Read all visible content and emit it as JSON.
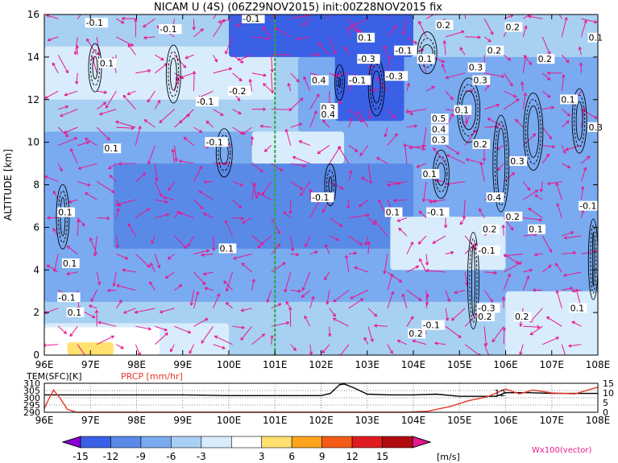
{
  "chart_data": [
    {
      "type": "heatmap",
      "title": "NICAM U (4S) (06Z29NOV2015) init:00Z28NOV2015 fix",
      "xlabel": "",
      "ylabel": "ALTITUDE [km]",
      "x_ticks": [
        "96E",
        "97E",
        "98E",
        "99E",
        "100E",
        "101E",
        "102E",
        "103E",
        "104E",
        "105E",
        "106E",
        "107E",
        "108E"
      ],
      "y_ticks": [
        "0",
        "2",
        "4",
        "6",
        "8",
        "10",
        "12",
        "14",
        "16"
      ],
      "xlim": [
        96,
        108
      ],
      "ylim": [
        0,
        16
      ],
      "marker_line_lon": 101,
      "regions": [
        {
          "lon": [
            96,
            108
          ],
          "alt": [
            0,
            16
          ],
          "u": -4
        },
        {
          "lon": [
            96,
            108
          ],
          "alt": [
            2.5,
            10.5
          ],
          "u": -7
        },
        {
          "lon": [
            97.5,
            104
          ],
          "alt": [
            5,
            9
          ],
          "u": -10
        },
        {
          "lon": [
            96,
            101.5
          ],
          "alt": [
            10.5,
            15
          ],
          "u": -5
        },
        {
          "lon": [
            96,
            101
          ],
          "alt": [
            12,
            14.5
          ],
          "u": -2
        },
        {
          "lon": [
            101.5,
            108
          ],
          "alt": [
            10.5,
            14
          ],
          "u": -9
        },
        {
          "lon": [
            100,
            104
          ],
          "alt": [
            14,
            16
          ],
          "u": -13
        },
        {
          "lon": [
            102.3,
            103.8
          ],
          "alt": [
            11,
            15
          ],
          "u": -15
        },
        {
          "lon": [
            96,
            100
          ],
          "alt": [
            0,
            1.5
          ],
          "u": -3
        },
        {
          "lon": [
            96,
            98.5
          ],
          "alt": [
            0,
            1.3
          ],
          "u": 4
        },
        {
          "lon": [
            96.5,
            97.5
          ],
          "alt": [
            0,
            0.6
          ],
          "u": 7
        },
        {
          "lon": [
            100.5,
            102.5
          ],
          "alt": [
            9,
            10.5
          ],
          "u": -3
        },
        {
          "lon": [
            103.5,
            106
          ],
          "alt": [
            4,
            6.5
          ],
          "u": -3
        },
        {
          "lon": [
            106,
            108
          ],
          "alt": [
            0,
            3
          ],
          "u": -2
        }
      ],
      "contour_labels": [
        {
          "text": "-0.1",
          "lon": 96.9,
          "alt": 15.5
        },
        {
          "text": "-0.1",
          "lon": 98.5,
          "alt": 15.2
        },
        {
          "text": "-0.1",
          "lon": 100.3,
          "alt": 15.7
        },
        {
          "text": "0.1",
          "lon": 97.2,
          "alt": 13.6
        },
        {
          "text": "-0.1",
          "lon": 99.3,
          "alt": 11.8
        },
        {
          "text": "-0.2",
          "lon": 100.0,
          "alt": 12.3
        },
        {
          "text": "-0.1",
          "lon": 99.5,
          "alt": 9.9
        },
        {
          "text": "0.1",
          "lon": 97.3,
          "alt": 9.6
        },
        {
          "text": "-0.1",
          "lon": 101.8,
          "alt": 7.3
        },
        {
          "text": "0.1",
          "lon": 103.4,
          "alt": 6.6
        },
        {
          "text": "-0.1",
          "lon": 104.3,
          "alt": 6.6
        },
        {
          "text": "0.1",
          "lon": 96.3,
          "alt": 6.6
        },
        {
          "text": "0.1",
          "lon": 99.8,
          "alt": 4.9
        },
        {
          "text": "0.1",
          "lon": 96.4,
          "alt": 4.2
        },
        {
          "text": "-0.1",
          "lon": 96.3,
          "alt": 2.6
        },
        {
          "text": "0.1",
          "lon": 96.5,
          "alt": 1.9
        },
        {
          "text": "-0.1",
          "lon": 102.6,
          "alt": 12.8
        },
        {
          "text": "-0.3",
          "lon": 103.4,
          "alt": 13.0
        },
        {
          "text": "-0.1",
          "lon": 103.6,
          "alt": 14.2
        },
        {
          "text": "0.1",
          "lon": 102.8,
          "alt": 14.8
        },
        {
          "text": "0.1",
          "lon": 104.1,
          "alt": 13.8
        },
        {
          "text": "0.2",
          "lon": 104.5,
          "alt": 15.4
        },
        {
          "text": "0.2",
          "lon": 106.0,
          "alt": 15.3
        },
        {
          "text": "0.1",
          "lon": 107.8,
          "alt": 14.8
        },
        {
          "text": "0.2",
          "lon": 105.6,
          "alt": 14.2
        },
        {
          "text": "0.2",
          "lon": 106.7,
          "alt": 13.8
        },
        {
          "text": "0.3",
          "lon": 105.2,
          "alt": 13.4
        },
        {
          "text": "0.3",
          "lon": 105.3,
          "alt": 12.8
        },
        {
          "text": "0.1",
          "lon": 107.2,
          "alt": 11.9
        },
        {
          "text": "0.1",
          "lon": 104.9,
          "alt": 11.4
        },
        {
          "text": "0.5",
          "lon": 104.4,
          "alt": 11.0
        },
        {
          "text": "0.4",
          "lon": 104.4,
          "alt": 10.5
        },
        {
          "text": "0.3",
          "lon": 104.4,
          "alt": 10.0
        },
        {
          "text": "0.2",
          "lon": 105.3,
          "alt": 9.8
        },
        {
          "text": "0.3",
          "lon": 106.1,
          "alt": 9.0
        },
        {
          "text": "0.3",
          "lon": 107.8,
          "alt": 10.6
        },
        {
          "text": "0.1",
          "lon": 104.2,
          "alt": 8.4
        },
        {
          "text": "0.4",
          "lon": 105.6,
          "alt": 7.3
        },
        {
          "text": "0.2",
          "lon": 106.0,
          "alt": 6.4
        },
        {
          "text": "0.2",
          "lon": 105.5,
          "alt": 5.8
        },
        {
          "text": "0.1",
          "lon": 106.5,
          "alt": 5.8
        },
        {
          "text": "-0.1",
          "lon": 107.6,
          "alt": 6.9
        },
        {
          "text": "-0.1",
          "lon": 105.4,
          "alt": 4.8
        },
        {
          "text": "-0.3",
          "lon": 105.4,
          "alt": 2.1
        },
        {
          "text": "0.2",
          "lon": 105.4,
          "alt": 1.7
        },
        {
          "text": "0.2",
          "lon": 106.2,
          "alt": 1.7
        },
        {
          "text": "0.1",
          "lon": 107.4,
          "alt": 2.1
        },
        {
          "text": "-0.1",
          "lon": 104.2,
          "alt": 1.3
        },
        {
          "text": "0.2",
          "lon": 103.9,
          "alt": 0.9
        },
        {
          "text": "-0.3",
          "lon": 102.8,
          "alt": 13.8
        },
        {
          "text": "0.4",
          "lon": 101.8,
          "alt": 12.8
        },
        {
          "text": "0.3",
          "lon": 102.0,
          "alt": 11.5
        },
        {
          "text": "0.4",
          "lon": 102.0,
          "alt": 11.2
        }
      ],
      "vector_label": "Wx100(vector)"
    },
    {
      "type": "line",
      "xlim": [
        96,
        108
      ],
      "x_ticks": [
        "96E",
        "97E",
        "98E",
        "99E",
        "100E",
        "101E",
        "102E",
        "103E",
        "104E",
        "105E",
        "106E",
        "107E",
        "108E"
      ],
      "left_axis_label": "TEM(SFC)[K]",
      "left_ticks": [
        "290",
        "295",
        "300",
        "305",
        "310"
      ],
      "left_ylim": [
        290,
        310
      ],
      "right_axis_label": "PRCP [mm/hr]",
      "right_ticks": [
        "0",
        "5",
        "10",
        "15"
      ],
      "right_ylim": [
        0,
        15
      ],
      "series": [
        {
          "name": "TEM(SFC)[K]",
          "color": "#000000",
          "axis": "left",
          "x": [
            96,
            97,
            98,
            99,
            100,
            101,
            102,
            102.2,
            102.4,
            102.5,
            102.7,
            102.9,
            103,
            103.5,
            104,
            104.5,
            105,
            105.5,
            105.8,
            106,
            106.5,
            107,
            108
          ],
          "values": [
            302,
            302,
            302,
            302,
            301.5,
            301.5,
            301.5,
            303,
            309,
            309.5,
            307,
            304,
            302.5,
            302,
            302,
            302.5,
            301,
            301,
            301,
            303.5,
            303.5,
            303,
            303
          ]
        },
        {
          "name": "PRCP [mm/hr]",
          "color": "#e8372a",
          "axis": "right",
          "x": [
            96,
            96.1,
            96.2,
            96.35,
            96.5,
            96.7,
            97,
            98,
            99,
            100,
            101,
            102,
            103,
            103.8,
            104.3,
            104.8,
            105.2,
            105.6,
            105.9,
            106,
            106.3,
            106.6,
            107,
            107.5,
            108
          ],
          "values": [
            2,
            7,
            11.5,
            7,
            1.5,
            0,
            0,
            0,
            0,
            0,
            0,
            0,
            0,
            0,
            0.5,
            3,
            6,
            8,
            11,
            12,
            9.5,
            11.5,
            10,
            9.5,
            13
          ]
        }
      ],
      "cursor_value": "12",
      "cursor_lon": 106.0
    },
    {
      "type": "colorbar",
      "tick_labels": [
        "-15",
        "-12",
        "-9",
        "-6",
        "-3",
        "3",
        "6",
        "9",
        "12",
        "15"
      ],
      "unit": "[m/s]",
      "colors": [
        "#8b00d9",
        "#3a60e6",
        "#5a8ae8",
        "#7aaaef",
        "#a8d0f3",
        "#d8ecfb",
        "#ffffff",
        "#ffe170",
        "#ffa51e",
        "#f35b17",
        "#e01b20",
        "#b00c10",
        "#e8178f"
      ]
    }
  ],
  "colors": {
    "vector": "#e8178f",
    "marker_line": "#2aa83a",
    "contour": "#000000",
    "temperature": "#000000",
    "precip": "#e8372a"
  }
}
